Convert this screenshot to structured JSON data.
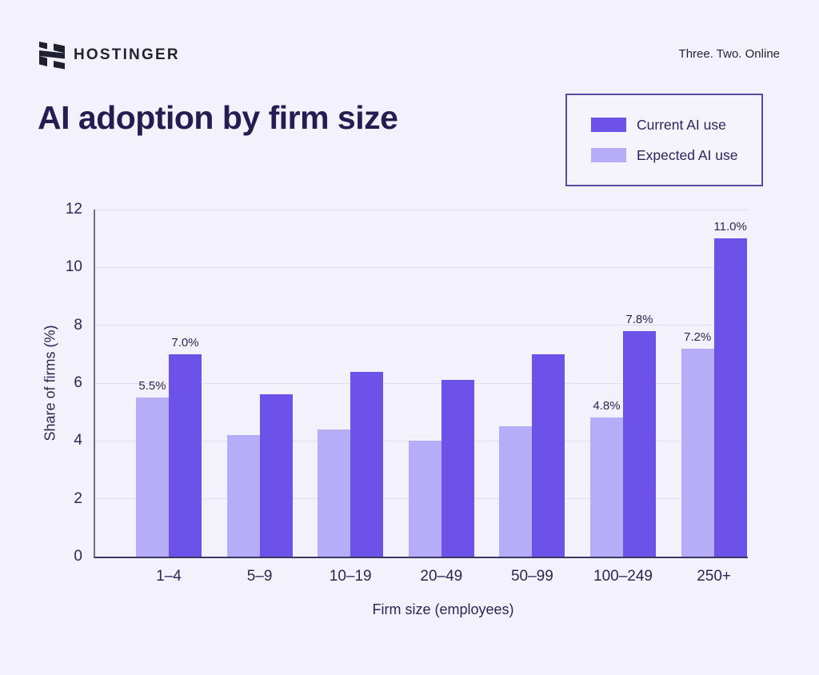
{
  "header": {
    "brand": "HOSTINGER",
    "tagline": "Three. Two. Online"
  },
  "title": "AI adoption by firm size",
  "legend": {
    "items": [
      {
        "label": "Current AI use",
        "color": "#6C52E9"
      },
      {
        "label": "Expected AI use",
        "color": "#B5ADF8"
      }
    ]
  },
  "chart_data": {
    "type": "bar",
    "title": "AI adoption by firm size",
    "categories": [
      "1–4",
      "5–9",
      "10–19",
      "20–49",
      "50–99",
      "100–249",
      "250+"
    ],
    "series": [
      {
        "name": "Expected AI use",
        "color": "#B5ADF8",
        "values": [
          5.5,
          4.2,
          4.4,
          4.0,
          4.5,
          4.8,
          7.2
        ],
        "labels": [
          "5.5%",
          "",
          "",
          "",
          "",
          "4.8%",
          "7.2%"
        ]
      },
      {
        "name": "Current AI use",
        "color": "#6C52E9",
        "values": [
          7.0,
          5.6,
          6.4,
          6.1,
          7.0,
          7.8,
          11.0
        ],
        "labels": [
          "7.0%",
          "",
          "",
          "",
          "",
          "7.8%",
          "11.0%"
        ]
      }
    ],
    "xlabel": "Firm size (employees)",
    "ylabel": "Share of firms (%)",
    "ylim": [
      0,
      12
    ],
    "yticks": [
      0,
      2,
      4,
      6,
      8,
      10,
      12
    ],
    "grid": true,
    "legend_position": "top-right",
    "bar_order_left_to_right": [
      "Expected AI use",
      "Current AI use"
    ]
  },
  "colors": {
    "background": "#F3F2FC",
    "title_text": "#251C52",
    "axis_text": "#2B2556",
    "gridline": "#DEDCEE",
    "axis_line_bottom": "#3C3763",
    "axis_line_left": "#716C96",
    "legend_border": "#564CA2",
    "current_bar": "#6C52E9",
    "expected_bar": "#B5ADF8"
  }
}
